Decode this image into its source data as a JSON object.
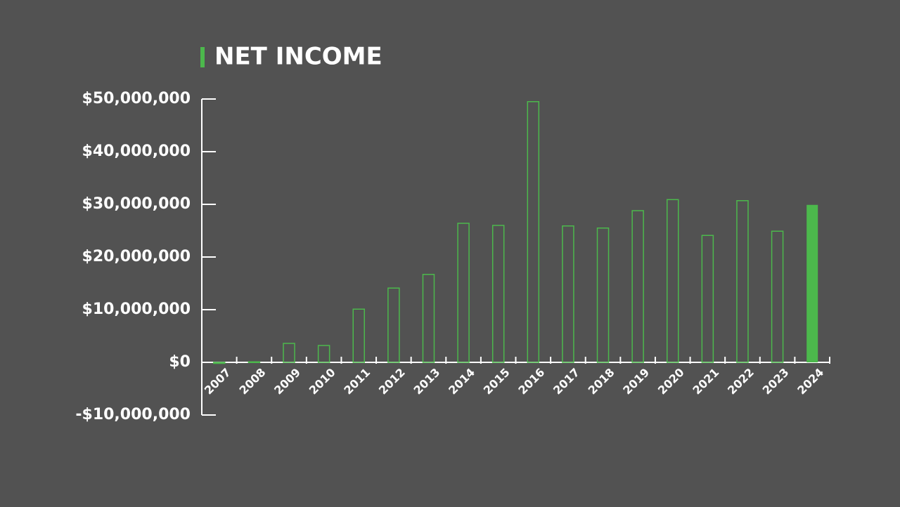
{
  "chart_data": {
    "type": "bar",
    "title": "NET INCOME",
    "categories": [
      "2007",
      "2008",
      "2009",
      "2010",
      "2011",
      "2012",
      "2013",
      "2014",
      "2015",
      "2016",
      "2017",
      "2018",
      "2019",
      "2020",
      "2021",
      "2022",
      "2023",
      "2024"
    ],
    "values": [
      -200000,
      100000,
      3600000,
      3200000,
      10100000,
      14100000,
      16700000,
      26400000,
      26000000,
      49500000,
      25900000,
      25500000,
      28800000,
      30900000,
      24100000,
      30700000,
      24900000,
      29900000
    ],
    "color": "#4cb84c",
    "highlight_index": 17,
    "ylim": [
      -10000000,
      50000000
    ],
    "yticks": [
      {
        "value": -10000000,
        "label": "-$10,000,000"
      },
      {
        "value": 0,
        "label": "$0"
      },
      {
        "value": 10000000,
        "label": "$10,000,000"
      },
      {
        "value": 20000000,
        "label": "$20,000,000"
      },
      {
        "value": 30000000,
        "label": "$30,000,000"
      },
      {
        "value": 40000000,
        "label": "$40,000,000"
      },
      {
        "value": 50000000,
        "label": "$50,000,000"
      }
    ]
  }
}
